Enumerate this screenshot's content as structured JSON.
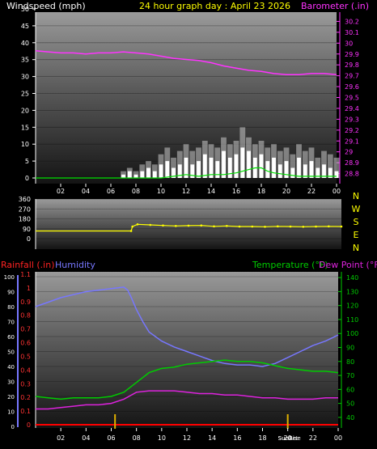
{
  "header": {
    "wind_label": "Windspeed (mph)",
    "title": "24 hour graph day : April 23 2026",
    "baro_label": "Barometer (.in)"
  },
  "colors": {
    "wind": "#ffffff",
    "gust_fill": "#c8c8c8",
    "avg_wind": "#00dd00",
    "baro": "#ff33ff",
    "direction": "#ffff00",
    "humidity": "#7777ff",
    "rainfall": "#ff0000",
    "temperature": "#00cc00",
    "dew_point": "#dd22dd",
    "title": "#ffff00",
    "axis_text": "#ffffff"
  },
  "lower_header": {
    "rainfall_label": "Rainfall (.in)",
    "humidity_label": "Humidity",
    "temperature_label": "Temperature (°F)",
    "dewpoint_label": "Dew Point (°F)"
  },
  "time_axis": {
    "ticks": [
      "02",
      "04",
      "06",
      "08",
      "10",
      "12",
      "14",
      "16",
      "18",
      "20",
      "22",
      "00"
    ],
    "sun_labels": [
      "SunRise",
      "SunSet"
    ],
    "sun_hours": [
      6.3,
      20.0
    ]
  },
  "chart_data": [
    {
      "type": "line",
      "name": "wind-barometer",
      "ylabel_left": "Windspeed (mph)",
      "ylabel_right": "Barometer (.in)",
      "ylim_left": [
        0,
        50
      ],
      "ylim_right": [
        28.7,
        30.3
      ],
      "left_ticks": [
        0,
        5,
        10,
        15,
        20,
        25,
        30,
        35,
        40,
        45,
        50
      ],
      "right_ticks": [
        "28.8",
        "28.9",
        "29",
        "29.1",
        "29.2",
        "29.3",
        "29.4",
        "29.5",
        "29.6",
        "29.7",
        "29.8",
        "29.9",
        "30",
        "30.1",
        "30.2"
      ],
      "xlim_hours": [
        0,
        24
      ],
      "series": [
        {
          "name": "Barometer",
          "x": [
            0,
            1,
            2,
            3,
            4,
            5,
            6,
            7,
            8,
            9,
            10,
            11,
            12,
            13,
            14,
            15,
            16,
            17,
            18,
            19,
            20,
            21,
            22,
            23,
            24
          ],
          "values": [
            29.93,
            29.92,
            29.91,
            29.91,
            29.9,
            29.91,
            29.91,
            29.92,
            29.91,
            29.9,
            29.88,
            29.86,
            29.85,
            29.84,
            29.82,
            29.79,
            29.77,
            29.75,
            29.74,
            29.72,
            29.71,
            29.71,
            29.72,
            29.72,
            29.71
          ]
        },
        {
          "name": "Windspeed",
          "x": [
            7.0,
            7.5,
            8.0,
            8.5,
            9.0,
            9.5,
            10.0,
            10.5,
            11.0,
            11.5,
            12.0,
            12.5,
            13.0,
            13.5,
            14.0,
            14.5,
            15.0,
            15.5,
            16.0,
            16.5,
            17.0,
            17.5,
            18.0,
            18.5,
            19.0,
            19.5,
            20.0,
            20.5,
            21.0,
            21.5,
            22.0,
            22.5,
            23.0,
            23.5,
            24.0
          ],
          "values": [
            1,
            2,
            1,
            2,
            3,
            2,
            4,
            5,
            3,
            4,
            6,
            4,
            5,
            7,
            6,
            5,
            8,
            6,
            7,
            9,
            8,
            6,
            7,
            5,
            6,
            4,
            5,
            3,
            6,
            4,
            5,
            3,
            4,
            3,
            2
          ],
          "gust": [
            2,
            3,
            2,
            4,
            5,
            4,
            7,
            9,
            6,
            8,
            10,
            8,
            9,
            11,
            10,
            9,
            12,
            10,
            11,
            15,
            12,
            10,
            11,
            9,
            10,
            8,
            9,
            7,
            10,
            8,
            9,
            6,
            8,
            7,
            6
          ]
        },
        {
          "name": "Average Windspeed",
          "x": [
            0,
            10.0,
            11.0,
            12.0,
            13.0,
            14.0,
            15.0,
            16.0,
            17.0,
            17.5,
            18.0,
            18.5,
            19.0,
            20.0,
            21.0,
            22.0,
            23.0,
            24.0
          ],
          "values": [
            0,
            0,
            0.5,
            1,
            0.5,
            1,
            1,
            1.5,
            2.5,
            3,
            3,
            2,
            1.5,
            1,
            0.5,
            0.5,
            0.5,
            0.5
          ]
        }
      ]
    },
    {
      "type": "scatter",
      "name": "wind-direction",
      "ylim": [
        0,
        360
      ],
      "y_ticks": [
        0,
        90,
        180,
        270,
        360
      ],
      "compass_labels": [
        "N",
        "W",
        "S",
        "E",
        "N"
      ],
      "xlim_hours": [
        0,
        24
      ],
      "series": [
        {
          "name": "Wind Direction",
          "x": [
            0,
            7.5,
            7.6,
            8.0,
            9.0,
            10.0,
            11.0,
            12.0,
            13.0,
            14.0,
            15.0,
            16.0,
            17.0,
            18.0,
            19.0,
            20.0,
            21.0,
            22.0,
            23.0,
            24.0
          ],
          "values": [
            70,
            70,
            110,
            130,
            125,
            120,
            115,
            118,
            120,
            112,
            115,
            110,
            110,
            108,
            112,
            110,
            108,
            110,
            112,
            110
          ]
        }
      ]
    },
    {
      "type": "line",
      "name": "temperature-humidity",
      "rain_ylim": [
        0,
        1.2
      ],
      "humidity_ylim": [
        0,
        100
      ],
      "temp_ylim": [
        33,
        147
      ],
      "rain_ticks": [
        "0",
        "0.1",
        "0.2",
        "0.3",
        "0.4",
        "0.5",
        "0.6",
        "0.7",
        "0.8",
        "0.9",
        "1",
        "1.1"
      ],
      "humidity_ticks": [
        0,
        10,
        20,
        30,
        40,
        50,
        60,
        70,
        80,
        90,
        100
      ],
      "temp_ticks": [
        40,
        50,
        60,
        70,
        80,
        90,
        100,
        110,
        120,
        130,
        140
      ],
      "xlim_hours": [
        0,
        24
      ],
      "series": [
        {
          "name": "Humidity",
          "x": [
            0,
            1,
            2,
            3,
            4,
            5,
            6,
            7,
            7.3,
            7.6,
            8,
            8.5,
            9,
            10,
            11,
            12,
            13,
            14,
            15,
            16,
            17,
            18,
            19,
            20,
            21,
            22,
            23,
            24
          ],
          "values": [
            80,
            83,
            86,
            88,
            90,
            91,
            92,
            93,
            91,
            86,
            78,
            70,
            63,
            57,
            53,
            50,
            47,
            44,
            42,
            41,
            41,
            40,
            42,
            46,
            50,
            54,
            57,
            61
          ]
        },
        {
          "name": "Temperature",
          "x": [
            0,
            1,
            2,
            3,
            4,
            5,
            6,
            7,
            8,
            9,
            10,
            11,
            12,
            13,
            14,
            15,
            16,
            17,
            18,
            19,
            20,
            21,
            22,
            23,
            24
          ],
          "values": [
            55,
            54,
            53,
            54,
            54,
            54,
            55,
            58,
            65,
            72,
            75,
            76,
            78,
            79,
            80,
            81,
            80,
            80,
            79,
            77,
            75,
            74,
            73,
            73,
            72
          ],
          "y_axis": "temperature"
        },
        {
          "name": "Dew Point",
          "x": [
            0,
            1,
            2,
            3,
            4,
            5,
            6,
            7,
            8,
            9,
            10,
            11,
            12,
            13,
            14,
            15,
            16,
            17,
            18,
            19,
            20,
            21,
            22,
            23,
            24
          ],
          "values": [
            46,
            46,
            47,
            48,
            49,
            49,
            50,
            53,
            58,
            59,
            59,
            59,
            58,
            57,
            57,
            56,
            56,
            55,
            54,
            54,
            53,
            53,
            53,
            54,
            54
          ],
          "y_axis": "temperature"
        },
        {
          "name": "Rainfall",
          "x": [
            0,
            24
          ],
          "values": [
            0,
            0
          ],
          "y_axis": "rainfall"
        }
      ]
    }
  ]
}
